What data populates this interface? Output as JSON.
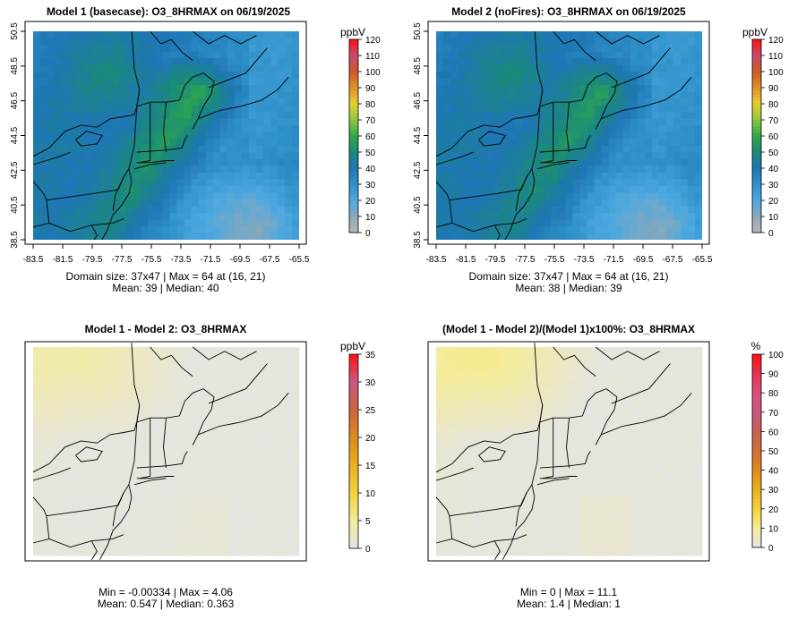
{
  "panels": [
    {
      "id": "model1",
      "title": "Model 1 (basecase): O3_8HRMAX on 06/19/2025",
      "unit": "ppbV",
      "scale_ticks": [
        0,
        10,
        20,
        30,
        40,
        50,
        60,
        70,
        80,
        90,
        100,
        110,
        120
      ],
      "scale_max": 120,
      "scale_colors": [
        "#b8b8b8",
        "#8fa8b8",
        "#4da8e0",
        "#2f90c8",
        "#1e76b4",
        "#1b8a7a",
        "#2fa84a",
        "#8ec640",
        "#e6cf30",
        "#e0902a",
        "#cc5a2a",
        "#c84a6e",
        "#ff1010"
      ],
      "x_ticks": [
        "-83.5",
        "-81.5",
        "-79.5",
        "-77.5",
        "-75.5",
        "-73.5",
        "-71.5",
        "-69.5",
        "-67.5",
        "-65.5"
      ],
      "y_ticks": [
        "38.5",
        "40.5",
        "42.5",
        "44.5",
        "46.5",
        "48.5",
        "50.5"
      ],
      "stat_line1": "Domain size: 37x47 | Max = 64 at (16, 21)",
      "stat_line2": "Mean: 39 |  Median: 40",
      "field": "conc",
      "plume": 1.0
    },
    {
      "id": "model2",
      "title": "Model 2 (noFires): O3_8HRMAX on 06/19/2025",
      "unit": "ppbV",
      "scale_ticks": [
        0,
        10,
        20,
        30,
        40,
        50,
        60,
        70,
        80,
        90,
        100,
        110,
        120
      ],
      "scale_max": 120,
      "scale_colors": [
        "#b8b8b8",
        "#8fa8b8",
        "#4da8e0",
        "#2f90c8",
        "#1e76b4",
        "#1b8a7a",
        "#2fa84a",
        "#8ec640",
        "#e6cf30",
        "#e0902a",
        "#cc5a2a",
        "#c84a6e",
        "#ff1010"
      ],
      "x_ticks": [
        "-83.5",
        "-81.5",
        "-79.5",
        "-77.5",
        "-75.5",
        "-73.5",
        "-71.5",
        "-69.5",
        "-67.5",
        "-65.5"
      ],
      "y_ticks": [
        "38.5",
        "40.5",
        "42.5",
        "44.5",
        "46.5",
        "48.5",
        "50.5"
      ],
      "stat_line1": "Domain size: 37x47 | Max = 64 at (16, 21)",
      "stat_line2": "Mean: 38 |  Median: 39",
      "field": "conc",
      "plume": 0.93
    },
    {
      "id": "diff",
      "title": "Model 1 - Model 2: O3_8HRMAX",
      "unit": "ppbV",
      "scale_ticks": [
        0,
        5,
        10,
        15,
        20,
        25,
        30,
        35
      ],
      "scale_max": 35,
      "scale_colors": [
        "#e4e4e4",
        "#f4ec9a",
        "#f4d23a",
        "#eab020",
        "#de8a1a",
        "#cc6440",
        "#c85a80",
        "#ff1010"
      ],
      "x_ticks": [],
      "y_ticks": [],
      "stat_line1": "Min = -0.00334 | Max = 4.06",
      "stat_line2": "Mean: 0.547 |  Median: 0.363",
      "field": "diff",
      "plume": 0
    },
    {
      "id": "pct",
      "title": "(Model 1 - Model 2)/(Model 1)x100%: O3_8HRMAX",
      "unit": "%",
      "scale_ticks": [
        0,
        10,
        20,
        30,
        40,
        50,
        60,
        70,
        80,
        90,
        100
      ],
      "scale_max": 100,
      "scale_colors": [
        "#e4e4e4",
        "#f4ec9a",
        "#f4d23a",
        "#eab020",
        "#de8a1a",
        "#d27030",
        "#c86050",
        "#c85a80",
        "#d8507a",
        "#e83050",
        "#ff1010"
      ],
      "x_ticks": [],
      "y_ticks": [],
      "stat_line1": "Min = 0 | Max = 11.1",
      "stat_line2": "Mean: 1.4 |  Median: 1",
      "field": "pct",
      "plume": 0
    }
  ]
}
